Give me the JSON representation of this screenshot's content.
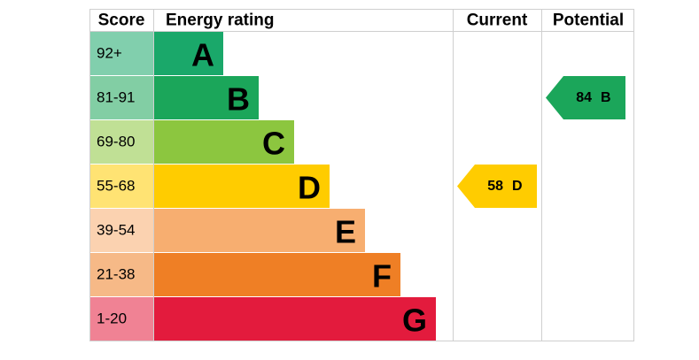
{
  "header": {
    "score": "Score",
    "rating": "Energy rating",
    "current": "Current",
    "potential": "Potential"
  },
  "bands": [
    {
      "score": "92+",
      "letter": "A",
      "color": "#1aa86a"
    },
    {
      "score": "81-91",
      "letter": "B",
      "color": "#1ba65a"
    },
    {
      "score": "69-80",
      "letter": "C",
      "color": "#8cc63f"
    },
    {
      "score": "55-68",
      "letter": "D",
      "color": "#ffcc00"
    },
    {
      "score": "39-54",
      "letter": "E",
      "color": "#f7ae70"
    },
    {
      "score": "21-38",
      "letter": "F",
      "color": "#ef7f25"
    },
    {
      "score": "1-20",
      "letter": "G",
      "color": "#e31b3d"
    }
  ],
  "current": {
    "value": 58,
    "letter": "D"
  },
  "potential": {
    "value": 84,
    "letter": "B"
  }
}
